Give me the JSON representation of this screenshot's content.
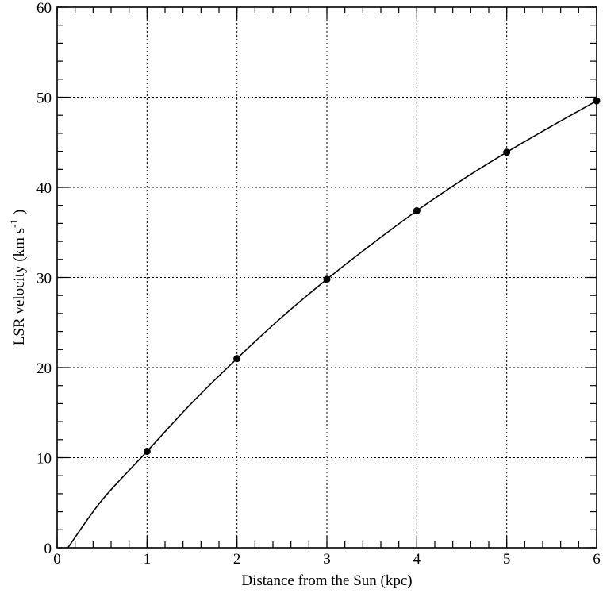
{
  "chart_data": {
    "type": "scatter",
    "title": "",
    "xlabel": "Distance from the Sun (kpc)",
    "ylabel_main": "LSR velocity (km s",
    "ylabel_sup": "-1",
    "ylabel_close": ")",
    "xlim": [
      0,
      6
    ],
    "ylim": [
      0,
      60
    ],
    "xticks": [
      0,
      1,
      2,
      3,
      4,
      5,
      6
    ],
    "yticks": [
      0,
      10,
      20,
      30,
      40,
      50,
      60
    ],
    "x_minor_step": 0.2,
    "y_minor_step": 2,
    "grid": true,
    "legend": "none",
    "series": [
      {
        "kind": "points",
        "x": [
          1,
          2,
          3,
          4,
          5,
          6
        ],
        "y": [
          10.7,
          21.0,
          29.8,
          37.4,
          43.9,
          49.6
        ]
      },
      {
        "kind": "curve",
        "x": [
          0.12,
          0.5,
          1,
          1.5,
          2,
          2.5,
          3,
          3.5,
          4,
          4.5,
          5,
          5.5,
          6
        ],
        "y": [
          0,
          5.3,
          10.7,
          16.1,
          21.0,
          25.6,
          29.8,
          33.7,
          37.4,
          40.8,
          43.9,
          46.8,
          49.6
        ]
      }
    ]
  }
}
